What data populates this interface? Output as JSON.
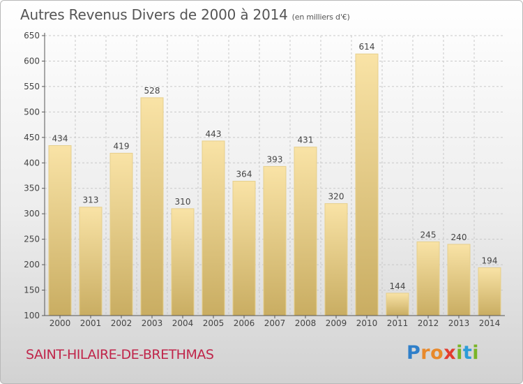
{
  "header": {
    "title": "Autres Revenus Divers de 2000 à 2014",
    "unit": "(en milliers d'€)"
  },
  "footer": {
    "city": "SAINT-HILAIRE-DE-BRETHMAS",
    "brand": [
      "P",
      "r",
      "o",
      "x",
      "i",
      "t",
      "i"
    ],
    "brand_colors": [
      "#2f7fc9",
      "#e8892b",
      "#e8892b",
      "#e33c2f",
      "#7ab527",
      "#2d9cd8",
      "#7ab527"
    ]
  },
  "colors": {
    "bar_light": "#f9e3a6",
    "bar_dark": "#c9ad62",
    "grid": "#c8c8c8",
    "text": "#444444",
    "accent": "#c0254a"
  },
  "chart_data": {
    "type": "bar",
    "categories": [
      "2000",
      "2001",
      "2002",
      "2003",
      "2004",
      "2005",
      "2006",
      "2007",
      "2008",
      "2009",
      "2010",
      "2011",
      "2012",
      "2013",
      "2014"
    ],
    "values": [
      434,
      313,
      419,
      528,
      310,
      443,
      364,
      393,
      431,
      320,
      614,
      144,
      245,
      240,
      194
    ],
    "ylim": [
      100,
      650
    ],
    "yticks": [
      100,
      150,
      200,
      250,
      300,
      350,
      400,
      450,
      500,
      550,
      600,
      650
    ],
    "grid": true
  }
}
